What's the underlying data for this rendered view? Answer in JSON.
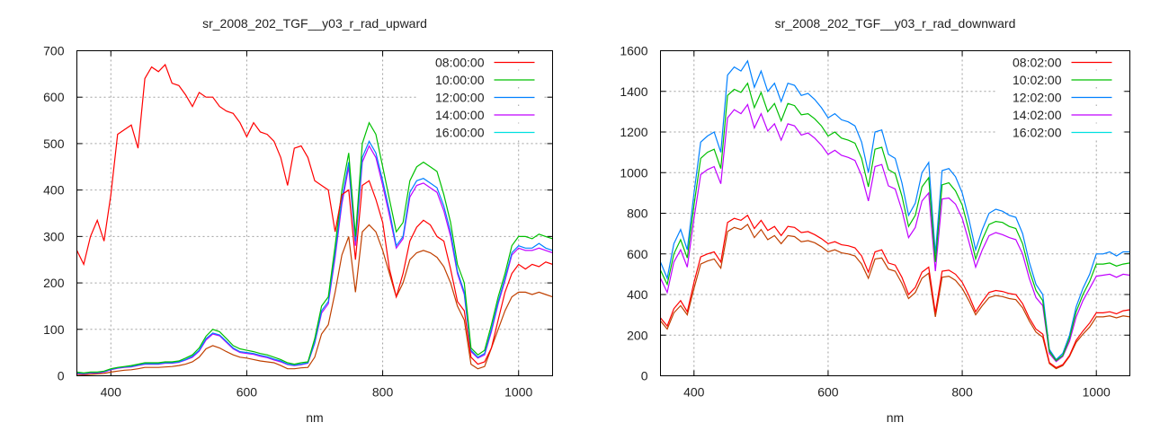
{
  "chart_data": [
    {
      "type": "line",
      "title": "sr_2008_202_TGF__y03_r_rad_upward",
      "xlabel": "nm",
      "ylabel": "",
      "xlim": [
        350,
        1050
      ],
      "ylim": [
        0,
        700
      ],
      "xticks": [
        400,
        600,
        800,
        1000
      ],
      "yticks": [
        0,
        100,
        200,
        300,
        400,
        500,
        600,
        700
      ],
      "grid": true,
      "legend_position": "top-right",
      "x_start": 350,
      "x_step": 10,
      "series": [
        {
          "name": "08:00:00",
          "color": "#ff0000",
          "legend_color": "#ff0000",
          "values": [
            270,
            240,
            300,
            335,
            290,
            390,
            520,
            530,
            540,
            490,
            640,
            665,
            655,
            670,
            630,
            625,
            605,
            580,
            610,
            600,
            600,
            580,
            570,
            565,
            545,
            515,
            545,
            525,
            520,
            505,
            470,
            410,
            490,
            495,
            470,
            420,
            410,
            400,
            310,
            390,
            400,
            250,
            410,
            420,
            380,
            330,
            230,
            170,
            220,
            290,
            320,
            335,
            325,
            300,
            290,
            230,
            160,
            140,
            40,
            25,
            30,
            60,
            120,
            180,
            220,
            240,
            230,
            240,
            235,
            245,
            240
          ]
        },
        {
          "name": "10:00:00",
          "color": "#00c000",
          "legend_color": "#00c000",
          "values": [
            8,
            6,
            8,
            8,
            10,
            15,
            18,
            20,
            22,
            25,
            28,
            28,
            28,
            30,
            30,
            32,
            38,
            45,
            60,
            85,
            100,
            95,
            80,
            65,
            58,
            55,
            52,
            48,
            45,
            40,
            35,
            28,
            25,
            28,
            30,
            80,
            150,
            170,
            280,
            400,
            480,
            300,
            500,
            545,
            520,
            450,
            380,
            310,
            330,
            420,
            450,
            460,
            450,
            440,
            390,
            330,
            240,
            200,
            60,
            45,
            55,
            110,
            170,
            220,
            280,
            300,
            300,
            295,
            305,
            300,
            295
          ]
        },
        {
          "name": "12:00:00",
          "color": "#0080ff",
          "legend_color": "#0080ff",
          "values": [
            6,
            5,
            7,
            7,
            9,
            14,
            17,
            19,
            20,
            23,
            26,
            26,
            26,
            28,
            28,
            30,
            35,
            42,
            55,
            80,
            92,
            88,
            74,
            60,
            52,
            50,
            48,
            44,
            41,
            36,
            32,
            25,
            23,
            25,
            28,
            72,
            140,
            160,
            265,
            380,
            460,
            290,
            470,
            505,
            480,
            420,
            355,
            280,
            300,
            395,
            420,
            425,
            415,
            405,
            365,
            310,
            225,
            180,
            55,
            40,
            48,
            100,
            160,
            210,
            265,
            280,
            275,
            275,
            285,
            275,
            270
          ]
        },
        {
          "name": "14:00:00",
          "color": "#c000ff",
          "legend_color": "#c000ff",
          "values": [
            5,
            4,
            6,
            6,
            8,
            13,
            16,
            18,
            19,
            22,
            25,
            25,
            25,
            27,
            27,
            29,
            34,
            40,
            53,
            77,
            90,
            86,
            72,
            58,
            50,
            48,
            46,
            42,
            39,
            34,
            30,
            24,
            22,
            24,
            27,
            70,
            135,
            155,
            255,
            370,
            450,
            280,
            460,
            495,
            470,
            410,
            345,
            275,
            295,
            385,
            410,
            415,
            405,
            395,
            355,
            300,
            220,
            175,
            52,
            38,
            45,
            95,
            155,
            205,
            260,
            275,
            270,
            270,
            275,
            270,
            265
          ]
        },
        {
          "name": "16:00:00",
          "color": "#c04000",
          "legend_color": "#00e0e0",
          "values": [
            3,
            2,
            3,
            4,
            5,
            8,
            10,
            12,
            13,
            15,
            18,
            18,
            18,
            19,
            20,
            22,
            25,
            30,
            40,
            58,
            65,
            60,
            52,
            45,
            40,
            38,
            35,
            32,
            30,
            28,
            22,
            15,
            15,
            17,
            18,
            40,
            90,
            110,
            180,
            260,
            300,
            180,
            310,
            325,
            310,
            270,
            220,
            170,
            200,
            250,
            265,
            270,
            265,
            255,
            235,
            200,
            150,
            120,
            25,
            15,
            20,
            60,
            100,
            140,
            170,
            180,
            180,
            175,
            180,
            175,
            170
          ]
        }
      ]
    },
    {
      "type": "line",
      "title": "sr_2008_202_TGF__y03_r_rad_downward",
      "xlabel": "nm",
      "ylabel": "",
      "xlim": [
        350,
        1050
      ],
      "ylim": [
        0,
        1600
      ],
      "xticks": [
        400,
        600,
        800,
        1000
      ],
      "yticks": [
        0,
        200,
        400,
        600,
        800,
        1000,
        1200,
        1400,
        1600
      ],
      "grid": true,
      "legend_position": "top-right",
      "x_start": 350,
      "x_step": 10,
      "series": [
        {
          "name": "08:02:00",
          "color": "#ff0000",
          "legend_color": "#ff0000",
          "values": [
            285,
            245,
            330,
            370,
            315,
            460,
            585,
            600,
            610,
            560,
            755,
            775,
            765,
            790,
            725,
            765,
            715,
            735,
            690,
            735,
            730,
            705,
            710,
            695,
            675,
            650,
            660,
            645,
            640,
            630,
            590,
            510,
            610,
            620,
            555,
            545,
            485,
            400,
            435,
            510,
            535,
            310,
            515,
            520,
            500,
            460,
            395,
            315,
            365,
            410,
            420,
            415,
            405,
            400,
            355,
            285,
            230,
            205,
            65,
            40,
            55,
            100,
            175,
            220,
            260,
            310,
            310,
            315,
            305,
            320,
            325
          ]
        },
        {
          "name": "10:02:00",
          "color": "#00c000",
          "legend_color": "#00c000",
          "values": [
            520,
            450,
            600,
            670,
            580,
            840,
            1070,
            1100,
            1115,
            1020,
            1380,
            1410,
            1395,
            1440,
            1320,
            1395,
            1300,
            1340,
            1255,
            1340,
            1330,
            1285,
            1290,
            1265,
            1230,
            1180,
            1200,
            1170,
            1160,
            1145,
            1070,
            930,
            1115,
            1125,
            1015,
            995,
            885,
            735,
            790,
            930,
            975,
            560,
            940,
            950,
            910,
            840,
            715,
            575,
            670,
            745,
            760,
            755,
            735,
            725,
            650,
            520,
            420,
            370,
            120,
            75,
            100,
            185,
            315,
            400,
            465,
            550,
            550,
            555,
            540,
            550,
            555
          ]
        },
        {
          "name": "12:02:00",
          "color": "#0080ff",
          "legend_color": "#0080ff",
          "values": [
            560,
            480,
            650,
            720,
            620,
            900,
            1150,
            1180,
            1200,
            1100,
            1480,
            1520,
            1500,
            1550,
            1420,
            1500,
            1400,
            1440,
            1350,
            1440,
            1430,
            1380,
            1390,
            1360,
            1320,
            1270,
            1290,
            1260,
            1250,
            1230,
            1150,
            1000,
            1200,
            1210,
            1090,
            1070,
            950,
            790,
            850,
            1000,
            1050,
            600,
            1010,
            1020,
            980,
            900,
            770,
            620,
            720,
            800,
            820,
            810,
            790,
            780,
            700,
            560,
            450,
            400,
            130,
            80,
            110,
            200,
            340,
            430,
            500,
            600,
            600,
            610,
            590,
            610,
            610
          ]
        },
        {
          "name": "14:02:00",
          "color": "#c000ff",
          "legend_color": "#c000ff",
          "values": [
            480,
            410,
            560,
            620,
            535,
            775,
            990,
            1015,
            1030,
            945,
            1270,
            1310,
            1290,
            1335,
            1220,
            1290,
            1205,
            1240,
            1160,
            1240,
            1230,
            1185,
            1195,
            1170,
            1135,
            1090,
            1110,
            1085,
            1075,
            1060,
            985,
            860,
            1030,
            1040,
            935,
            920,
            815,
            680,
            730,
            860,
            900,
            515,
            870,
            875,
            845,
            775,
            660,
            535,
            620,
            690,
            705,
            695,
            680,
            670,
            600,
            480,
            385,
            345,
            110,
            70,
            95,
            170,
            290,
            370,
            430,
            490,
            495,
            500,
            485,
            500,
            495
          ]
        },
        {
          "name": "16:02:00",
          "color": "#c04000",
          "legend_color": "#00e0e0",
          "values": [
            270,
            230,
            310,
            345,
            300,
            430,
            550,
            565,
            575,
            530,
            710,
            730,
            720,
            745,
            680,
            720,
            670,
            690,
            650,
            690,
            685,
            660,
            665,
            655,
            635,
            610,
            620,
            605,
            600,
            590,
            550,
            480,
            575,
            580,
            525,
            515,
            455,
            380,
            410,
            480,
            505,
            290,
            485,
            490,
            470,
            430,
            370,
            300,
            345,
            385,
            395,
            390,
            380,
            375,
            335,
            270,
            215,
            190,
            60,
            35,
            50,
            95,
            165,
            205,
            240,
            290,
            290,
            295,
            285,
            295,
            290
          ]
        }
      ]
    }
  ]
}
